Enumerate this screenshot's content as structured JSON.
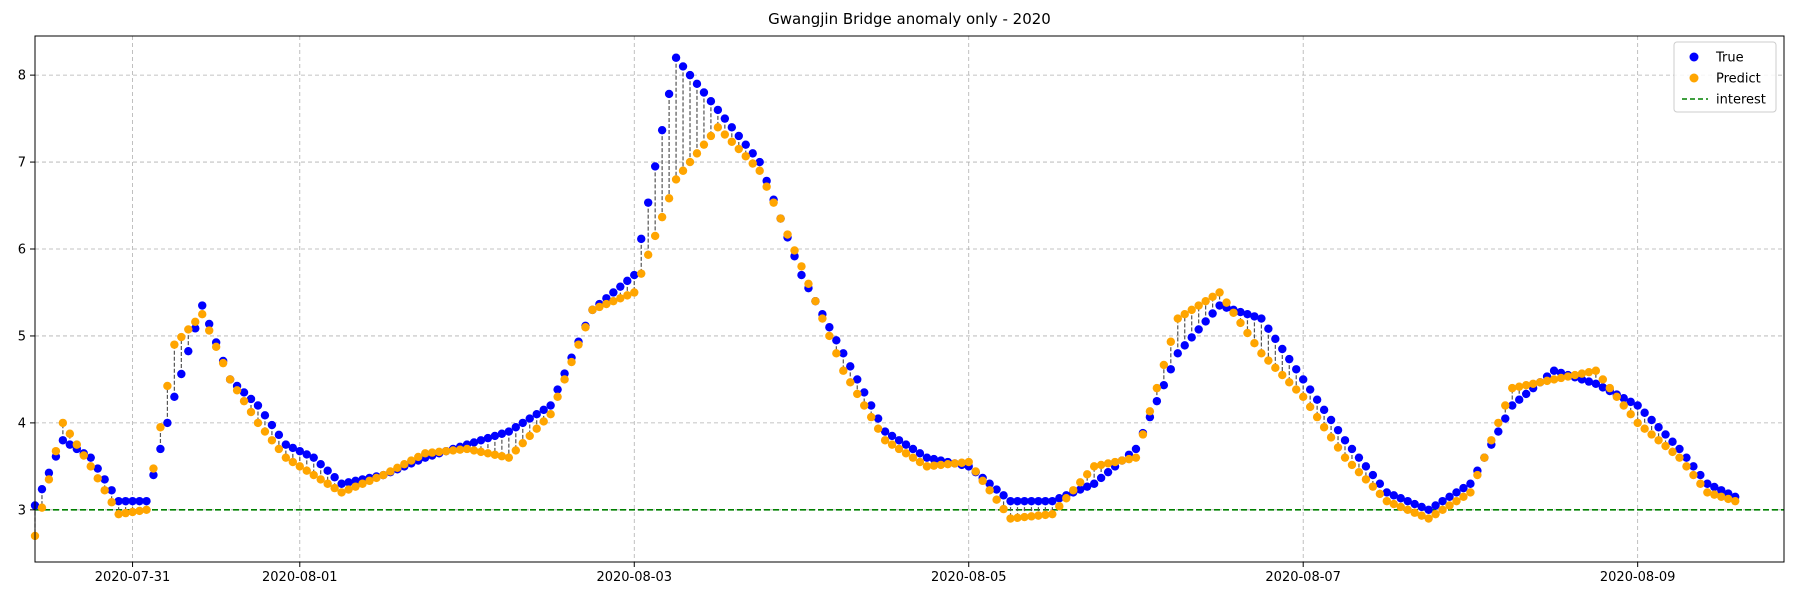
{
  "chart_data": {
    "type": "scatter",
    "title": "Gwangjin Bridge anomaly only - 2020",
    "xlabel": "",
    "ylabel": "",
    "x_unit": "day",
    "xlim": [
      "2020-07-30 10:00",
      "2020-08-09 21:00"
    ],
    "ylim": [
      2.4,
      8.45
    ],
    "x_ticks": [
      {
        "value": "2020-07-31",
        "label": "2020-07-31"
      },
      {
        "value": "2020-08-01",
        "label": "2020-08-01"
      },
      {
        "value": "2020-08-03",
        "label": "2020-08-03"
      },
      {
        "value": "2020-08-05",
        "label": "2020-08-05"
      },
      {
        "value": "2020-08-07",
        "label": "2020-08-07"
      },
      {
        "value": "2020-08-09",
        "label": "2020-08-09"
      }
    ],
    "y_ticks": [
      3,
      4,
      5,
      6,
      7,
      8
    ],
    "grid": true,
    "legend_position": "top-right",
    "colors": {
      "true": "#0000ff",
      "predict": "#ffa500",
      "interest": "#008000",
      "connector": "#555555",
      "grid": "#b0b0b0"
    },
    "reference_line": {
      "name": "interest",
      "y": 3.0,
      "style": "dashed"
    },
    "series_anchors": [
      {
        "name": "True",
        "x": [
          "2020-07-30 10:00",
          "2020-07-30 14:00",
          "2020-07-30 18:00",
          "2020-07-30 22:00",
          "2020-07-31 02:00",
          "2020-07-31 06:00",
          "2020-07-31 10:00",
          "2020-07-31 14:00",
          "2020-07-31 18:00",
          "2020-07-31 22:00",
          "2020-08-01 02:00",
          "2020-08-01 06:00",
          "2020-08-01 12:00",
          "2020-08-01 18:00",
          "2020-08-02 00:00",
          "2020-08-02 06:00",
          "2020-08-02 12:00",
          "2020-08-02 18:00",
          "2020-08-03 00:00",
          "2020-08-03 06:00",
          "2020-08-03 12:00",
          "2020-08-03 18:00",
          "2020-08-04 00:00",
          "2020-08-04 06:00",
          "2020-08-04 12:00",
          "2020-08-04 18:00",
          "2020-08-05 00:00",
          "2020-08-05 06:00",
          "2020-08-05 12:00",
          "2020-08-05 18:00",
          "2020-08-06 00:00",
          "2020-08-06 06:00",
          "2020-08-06 12:00",
          "2020-08-06 18:00",
          "2020-08-07 00:00",
          "2020-08-07 06:00",
          "2020-08-07 12:00",
          "2020-08-07 18:00",
          "2020-08-08 00:00",
          "2020-08-08 06:00",
          "2020-08-08 12:00",
          "2020-08-08 18:00",
          "2020-08-09 00:00",
          "2020-08-09 06:00",
          "2020-08-09 10:00",
          "2020-08-09 14:00"
        ],
        "values": [
          3.05,
          3.8,
          3.6,
          3.1,
          3.1,
          4.3,
          5.35,
          4.5,
          4.2,
          3.75,
          3.6,
          3.3,
          3.4,
          3.6,
          3.75,
          3.9,
          4.2,
          5.3,
          5.7,
          8.2,
          7.6,
          7.0,
          5.7,
          4.8,
          3.9,
          3.6,
          3.5,
          3.1,
          3.1,
          3.3,
          3.7,
          4.8,
          5.35,
          5.2,
          4.5,
          3.8,
          3.2,
          3.0,
          3.3,
          4.2,
          4.6,
          4.45,
          4.2,
          3.7,
          3.3,
          3.15
        ]
      }
    ],
    "predict_anchors": [
      {
        "name": "Predict",
        "x": [
          "2020-07-30 10:00",
          "2020-07-30 14:00",
          "2020-07-30 18:00",
          "2020-07-30 22:00",
          "2020-07-31 02:00",
          "2020-07-31 06:00",
          "2020-07-31 10:00",
          "2020-07-31 14:00",
          "2020-07-31 18:00",
          "2020-07-31 22:00",
          "2020-08-01 02:00",
          "2020-08-01 06:00",
          "2020-08-01 12:00",
          "2020-08-01 18:00",
          "2020-08-02 00:00",
          "2020-08-02 06:00",
          "2020-08-02 12:00",
          "2020-08-02 18:00",
          "2020-08-03 00:00",
          "2020-08-03 06:00",
          "2020-08-03 12:00",
          "2020-08-03 18:00",
          "2020-08-04 00:00",
          "2020-08-04 06:00",
          "2020-08-04 12:00",
          "2020-08-04 18:00",
          "2020-08-05 00:00",
          "2020-08-05 06:00",
          "2020-08-05 12:00",
          "2020-08-05 18:00",
          "2020-08-06 00:00",
          "2020-08-06 06:00",
          "2020-08-06 12:00",
          "2020-08-06 18:00",
          "2020-08-07 00:00",
          "2020-08-07 06:00",
          "2020-08-07 12:00",
          "2020-08-07 18:00",
          "2020-08-08 00:00",
          "2020-08-08 06:00",
          "2020-08-08 12:00",
          "2020-08-08 18:00",
          "2020-08-09 00:00",
          "2020-08-09 06:00",
          "2020-08-09 10:00",
          "2020-08-09 14:00"
        ],
        "values": [
          2.7,
          4.0,
          3.5,
          2.95,
          3.0,
          4.9,
          5.25,
          4.5,
          4.0,
          3.6,
          3.4,
          3.2,
          3.4,
          3.65,
          3.7,
          3.6,
          4.1,
          5.3,
          5.5,
          6.8,
          7.4,
          6.9,
          5.8,
          4.6,
          3.8,
          3.5,
          3.55,
          2.9,
          2.95,
          3.5,
          3.6,
          5.2,
          5.5,
          4.8,
          4.3,
          3.6,
          3.1,
          2.9,
          3.2,
          4.4,
          4.5,
          4.6,
          4.0,
          3.6,
          3.2,
          3.1
        ]
      }
    ],
    "series": [
      {
        "name": "True",
        "marker": "circle"
      },
      {
        "name": "Predict",
        "marker": "circle"
      }
    ],
    "legend": [
      {
        "label": "True",
        "kind": "dot",
        "color": "#0000ff"
      },
      {
        "label": "Predict",
        "kind": "dot",
        "color": "#ffa500"
      },
      {
        "label": "interest",
        "kind": "dashed-line",
        "color": "#008000"
      }
    ],
    "sampling_hours": 1
  }
}
